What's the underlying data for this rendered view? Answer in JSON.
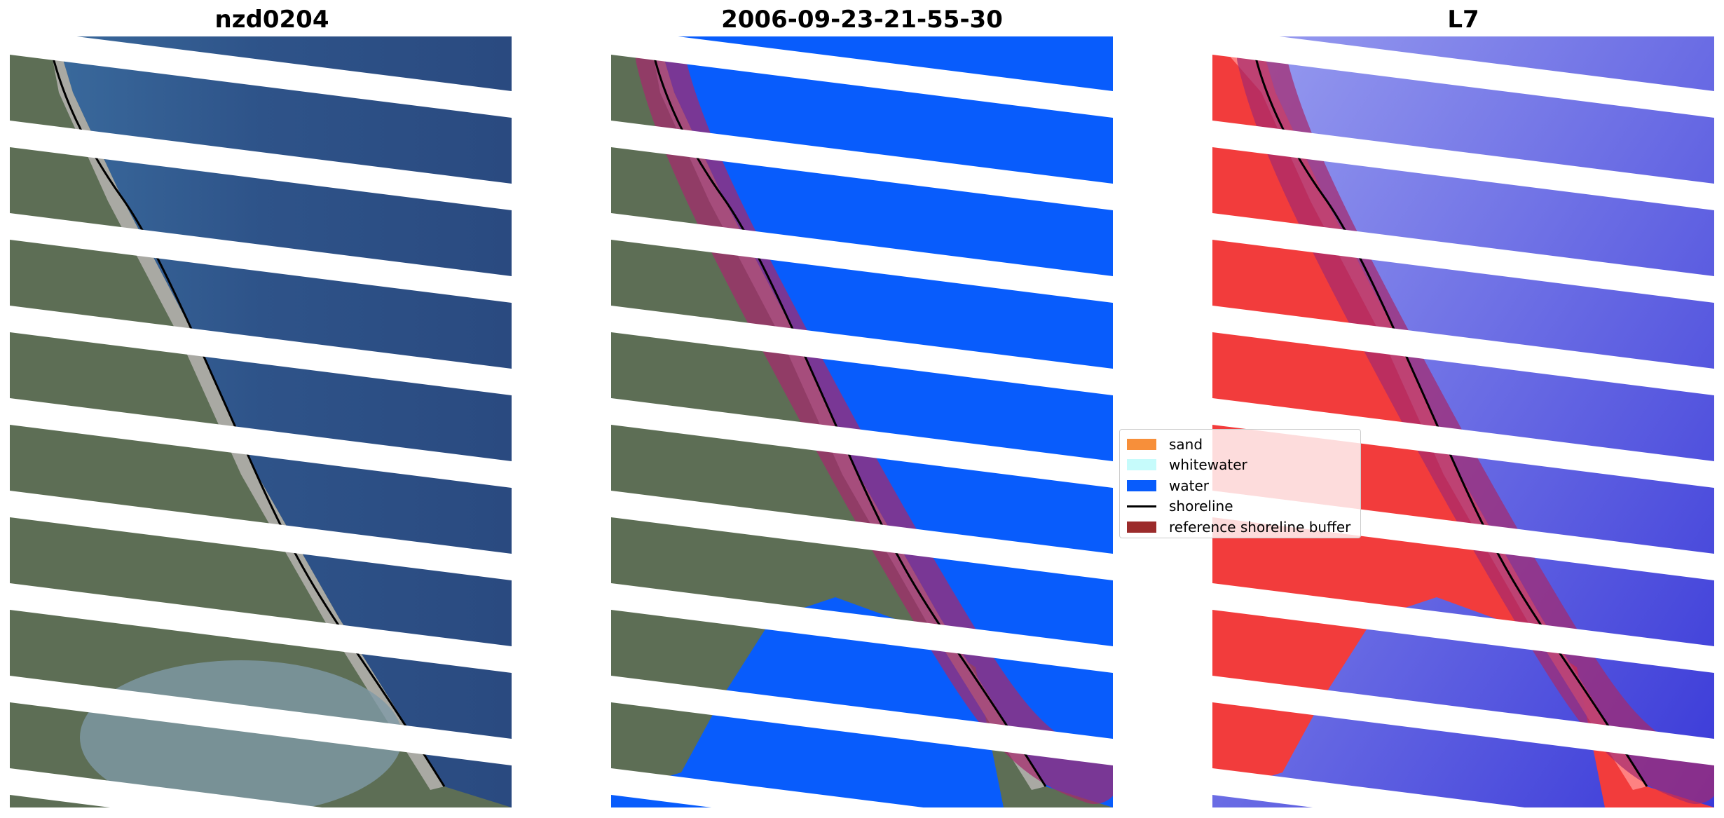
{
  "panels": [
    {
      "title": "nzd0204"
    },
    {
      "title": "2006-09-23-21-55-30"
    },
    {
      "title": "L7"
    }
  ],
  "legend": {
    "items": [
      {
        "label": "sand",
        "color": "#f78f3a",
        "kind": "patch"
      },
      {
        "label": "whitewater",
        "color": "#c6fbfb",
        "kind": "patch"
      },
      {
        "label": "water",
        "color": "#085cfc",
        "kind": "patch"
      },
      {
        "label": "shoreline",
        "color": "#000000",
        "kind": "line"
      },
      {
        "label": "reference shoreline buffer",
        "color": "#9b2b2b",
        "kind": "patch"
      }
    ]
  },
  "colors": {
    "ocean": "#2f5289",
    "land": "#5b6f58",
    "classified_water": "#085cfc",
    "index_land": "#f23c3c",
    "index_water": "#5959e6",
    "buffer_overlay": "#a52a6e",
    "nodata_stripe": "#ffffff"
  }
}
